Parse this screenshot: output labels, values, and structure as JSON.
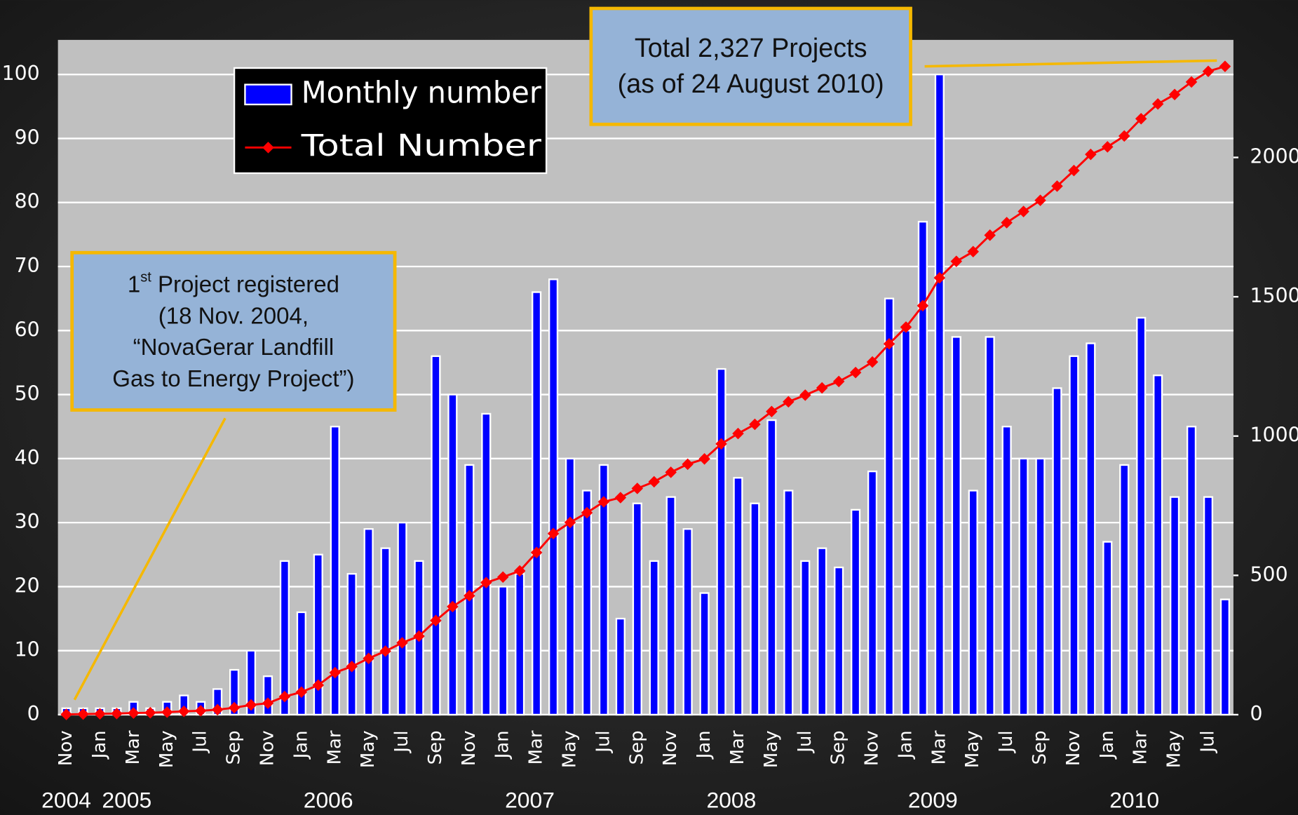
{
  "chart_data": {
    "type": "bar_line",
    "categories": [
      "Nov",
      null,
      "Jan",
      null,
      "Mar",
      null,
      "May",
      null,
      "Jul",
      null,
      "Sep",
      null,
      "Nov",
      null,
      "Jan",
      null,
      "Mar",
      null,
      "May",
      null,
      "Jul",
      null,
      "Sep",
      null,
      "Nov",
      null,
      "Jan",
      null,
      "Mar",
      null,
      "May",
      null,
      "Jul",
      null,
      "Sep",
      null,
      "Nov",
      null,
      "Jan",
      null,
      "Mar",
      null,
      "May",
      null,
      "Jul",
      null,
      "Sep",
      null,
      "Nov",
      null,
      "Jan",
      null,
      "Mar",
      null,
      "May",
      null,
      "Jul",
      null,
      "Sep",
      null,
      "Nov",
      null,
      "Jan",
      null,
      "Mar",
      null,
      "May",
      null,
      "Jul",
      null
    ],
    "year_labels": [
      "2004",
      "2005",
      "2006",
      "2007",
      "2008",
      "2009",
      "2010"
    ],
    "series": [
      {
        "name": "Monthly number",
        "type": "bar",
        "color": "#0000ff",
        "axis": "y",
        "values": [
          1,
          1,
          1,
          1,
          2,
          1,
          2,
          3,
          2,
          4,
          7,
          10,
          6,
          24,
          16,
          25,
          45,
          22,
          29,
          26,
          30,
          24,
          56,
          50,
          39,
          47,
          20,
          22,
          66,
          68,
          40,
          35,
          39,
          15,
          33,
          24,
          34,
          29,
          19,
          54,
          37,
          33,
          46,
          35,
          24,
          26,
          23,
          32,
          38,
          65,
          60,
          77,
          100,
          59,
          35,
          59,
          45,
          40,
          40,
          51,
          56,
          58,
          27,
          39,
          62,
          53,
          34,
          45,
          34,
          18
        ]
      },
      {
        "name": "Total Number",
        "type": "line",
        "color": "#ff0000",
        "axis": "y2",
        "values": [
          1,
          2,
          3,
          4,
          6,
          7,
          9,
          12,
          14,
          18,
          25,
          35,
          41,
          65,
          81,
          106,
          151,
          173,
          202,
          228,
          258,
          282,
          338,
          388,
          427,
          474,
          494,
          516,
          582,
          650,
          690,
          725,
          764,
          779,
          812,
          836,
          870,
          899,
          918,
          972,
          1009,
          1042,
          1088,
          1123,
          1147,
          1173,
          1196,
          1228,
          1266,
          1331,
          1391,
          1468,
          1568,
          1627,
          1662,
          1721,
          1766,
          1806,
          1846,
          1897,
          1953,
          2011,
          2038,
          2077,
          2139,
          2192,
          2226,
          2271,
          2309,
          2327
        ]
      }
    ],
    "ylim": [
      0,
      105.4
    ],
    "yticks": [
      0,
      10,
      20,
      30,
      40,
      50,
      60,
      70,
      80,
      90,
      100
    ],
    "y2lim": [
      0,
      2422
    ],
    "y2ticks": [
      0,
      500,
      1000,
      1500,
      2000
    ],
    "grid": true,
    "legend": "upper left",
    "annotations": [
      {
        "lines": [
          [
            "1",
            "st",
            " Project registered"
          ],
          [
            "(18 Nov. 2004,"
          ],
          [
            "“NovaGerar Landfill"
          ],
          [
            "Gas to Energy Project”)"
          ]
        ]
      },
      {
        "lines": [
          [
            "Total 2,327 Projects"
          ],
          [
            "(as of 24 August 2010)"
          ]
        ]
      }
    ]
  }
}
